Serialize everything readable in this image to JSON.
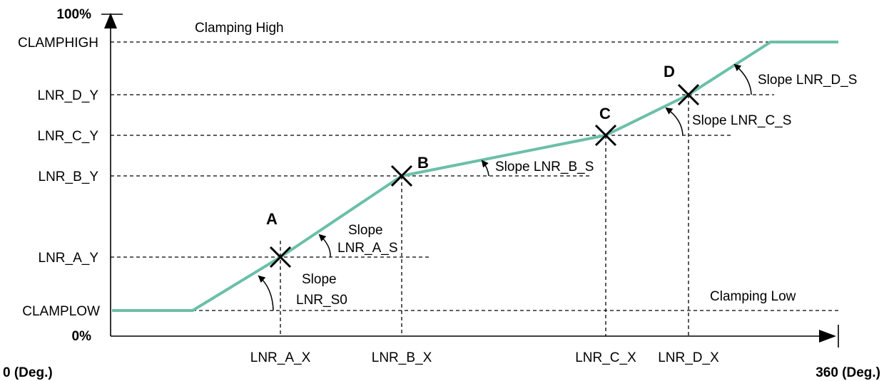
{
  "y_axis": {
    "top": "100%",
    "bottom": "0%"
  },
  "x_axis": {
    "left": "0 (Deg.)",
    "right": "360 (Deg.)"
  },
  "y_labels": {
    "clamphigh": "CLAMPHIGH",
    "lnr_d_y": "LNR_D_Y",
    "lnr_c_y": "LNR_C_Y",
    "lnr_b_y": "LNR_B_Y",
    "lnr_a_y": "LNR_A_Y",
    "clamplow": "CLAMPLOW"
  },
  "x_labels": {
    "lnr_a_x": "LNR_A_X",
    "lnr_b_x": "LNR_B_X",
    "lnr_c_x": "LNR_C_X",
    "lnr_d_x": "LNR_D_X"
  },
  "clamp_labels": {
    "high": "Clamping High",
    "low": "Clamping Low"
  },
  "points": {
    "a": "A",
    "b": "B",
    "c": "C",
    "d": "D"
  },
  "slopes": {
    "s0_line1": "Slope",
    "s0_line2": "LNR_S0",
    "a_line1": "Slope",
    "a_line2": "LNR_A_S",
    "b": "Slope LNR_B_S",
    "c": "Slope LNR_C_S",
    "d": "Slope LNR_D_S"
  },
  "colors": {
    "curve": "#6bbfa8",
    "lines": "#000000"
  }
}
